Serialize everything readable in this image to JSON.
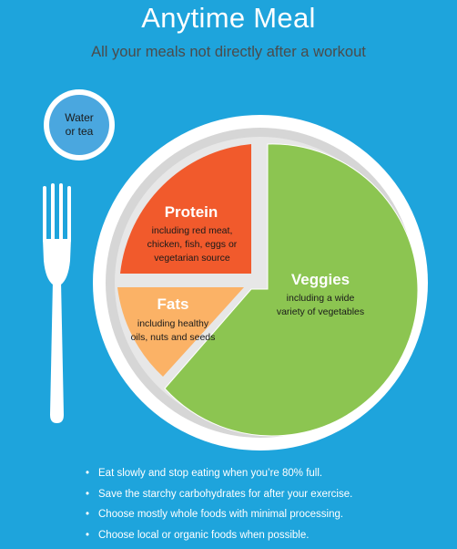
{
  "header": {
    "title": "Anytime Meal",
    "subtitle": "All your meals not directly after a workout"
  },
  "drink": {
    "line1": "Water",
    "line2": "or tea"
  },
  "segments": {
    "protein": {
      "title": "Protein",
      "lines": [
        "including red meat,",
        "chicken, fish, eggs or",
        "vegetarian source"
      ]
    },
    "fats": {
      "title": "Fats",
      "lines": [
        "including healthy",
        "oils, nuts and seeds"
      ]
    },
    "veggies": {
      "title": "Veggies",
      "lines": [
        "including a wide",
        "variety of vegetables"
      ]
    }
  },
  "tips": [
    "Eat slowly and stop eating when you’re 80% full.",
    "Save the starchy carbohydrates for after your exercise.",
    "Choose mostly whole foods with minimal processing.",
    "Choose local or organic foods when possible."
  ],
  "colors": {
    "background": "#1ea4dc",
    "protein": "#f15a2c",
    "fats": "#fbb266",
    "veggies": "#8cc551",
    "plate_rim": "#d9d9d9",
    "glass": "#4aa7df"
  }
}
